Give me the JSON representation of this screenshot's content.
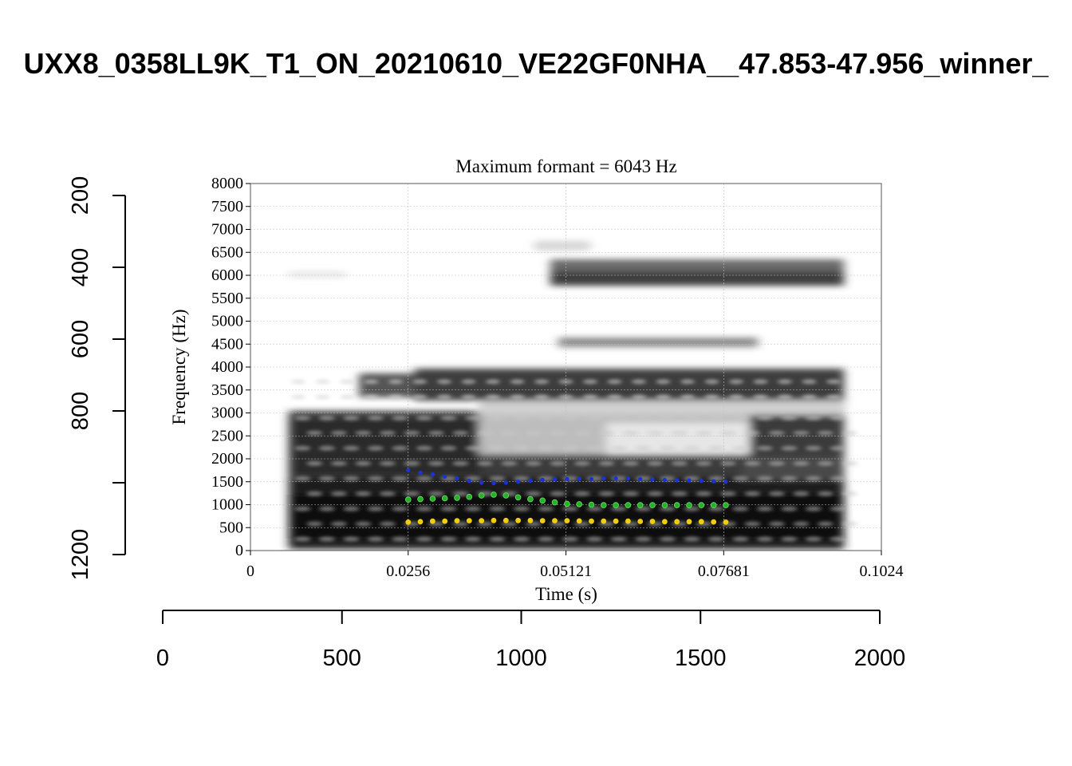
{
  "chart_data": {
    "type": "scatter",
    "title": "UXX8_0358LL9K_T1_ON_20210610_VE22GF0NHA__47.853-47.956_winner_",
    "outer_axes": {
      "x": {
        "ticks": [
          "0",
          "500",
          "1000",
          "1500",
          "2000"
        ],
        "range": [
          0,
          2000
        ]
      },
      "y": {
        "ticks": [
          "200",
          "400",
          "600",
          "800",
          "1200"
        ],
        "range": [
          200,
          1200
        ]
      }
    },
    "panel": {
      "title": "Maximum formant  =  6043 Hz",
      "xlabel": "Time (s)",
      "ylabel": "Frequency (Hz)",
      "x_ticks": [
        "0",
        "0.0256",
        "0.05121",
        "0.07681",
        "0.1024"
      ],
      "y_ticks": [
        "0",
        "500",
        "1000",
        "1500",
        "2000",
        "2500",
        "3000",
        "3500",
        "4000",
        "4500",
        "5000",
        "5500",
        "6000",
        "6500",
        "7000",
        "7500",
        "8000"
      ],
      "xlim": [
        0,
        0.1024
      ],
      "ylim": [
        0,
        8000
      ],
      "grid": true,
      "background": "spectrogram (grayscale)"
    },
    "series": [
      {
        "color": "#1a33d9",
        "x": [
          0.0256,
          0.02758,
          0.02957,
          0.03155,
          0.03353,
          0.03551,
          0.0375,
          0.03948,
          0.04146,
          0.04345,
          0.04543,
          0.04741,
          0.04939,
          0.05138,
          0.05336,
          0.05534,
          0.05732,
          0.05931,
          0.06129,
          0.06327,
          0.06525,
          0.06724,
          0.06922,
          0.0712,
          0.07318,
          0.07517,
          0.07715
        ],
        "values": [
          1750,
          1700,
          1660,
          1610,
          1570,
          1520,
          1480,
          1470,
          1480,
          1500,
          1520,
          1540,
          1550,
          1560,
          1560,
          1560,
          1570,
          1570,
          1570,
          1560,
          1550,
          1540,
          1530,
          1530,
          1520,
          1510,
          1500
        ]
      },
      {
        "color": "#22b422",
        "x": [
          0.0256,
          0.02758,
          0.02957,
          0.03155,
          0.03353,
          0.03551,
          0.0375,
          0.03948,
          0.04146,
          0.04345,
          0.04543,
          0.04741,
          0.04939,
          0.05138,
          0.05336,
          0.05534,
          0.05732,
          0.05931,
          0.06129,
          0.06327,
          0.06525,
          0.06724,
          0.06922,
          0.0712,
          0.07318,
          0.07517,
          0.07715
        ],
        "values": [
          1110,
          1120,
          1130,
          1140,
          1150,
          1170,
          1200,
          1220,
          1200,
          1160,
          1120,
          1090,
          1050,
          1020,
          1010,
          1000,
          990,
          990,
          990,
          990,
          990,
          990,
          990,
          990,
          990,
          990,
          990
        ]
      },
      {
        "color": "#f2cc0d",
        "x": [
          0.0256,
          0.02758,
          0.02957,
          0.03155,
          0.03353,
          0.03551,
          0.0375,
          0.03948,
          0.04146,
          0.04345,
          0.04543,
          0.04741,
          0.04939,
          0.05138,
          0.05336,
          0.05534,
          0.05732,
          0.05931,
          0.06129,
          0.06327,
          0.06525,
          0.06724,
          0.06922,
          0.0712,
          0.07318,
          0.07517,
          0.07715
        ],
        "values": [
          620,
          630,
          640,
          640,
          650,
          650,
          650,
          655,
          655,
          655,
          655,
          650,
          650,
          650,
          645,
          640,
          640,
          640,
          640,
          635,
          635,
          630,
          630,
          630,
          630,
          625,
          620
        ]
      }
    ]
  }
}
